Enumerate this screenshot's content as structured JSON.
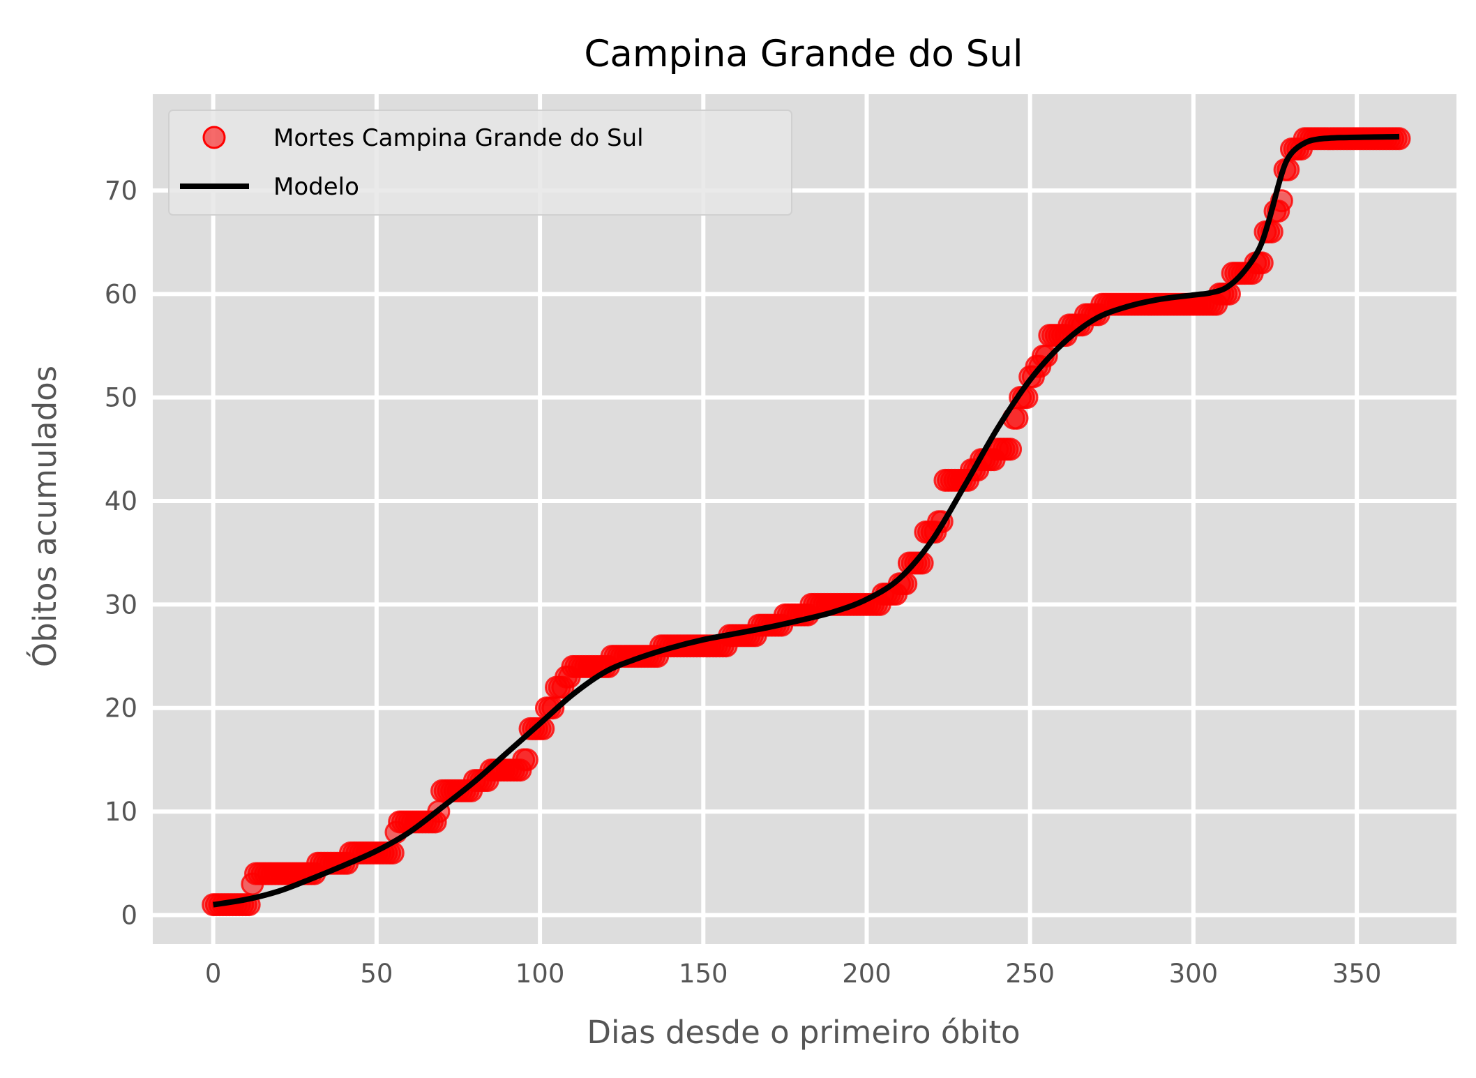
{
  "chart_data": {
    "type": "scatter",
    "title": "Campina Grande do Sul",
    "xlabel": "Dias desde o primeiro óbito",
    "ylabel": "Óbitos acumulados",
    "xlim": [
      -18.5,
      380.5
    ],
    "ylim": [
      -2.8,
      79.3
    ],
    "xticks": [
      0,
      50,
      100,
      150,
      200,
      250,
      300,
      350
    ],
    "yticks": [
      0,
      10,
      20,
      30,
      40,
      50,
      60,
      70
    ],
    "grid": true,
    "legend": {
      "position": "top-left"
    },
    "colors": {
      "plot_background": "#dddddd",
      "grid": "#ffffff",
      "observed": "#ff0000",
      "model": "#000000"
    },
    "series": [
      {
        "name": "Mortes Campina Grande do Sul",
        "kind": "scatter",
        "step_points": [
          [
            0,
            1
          ],
          [
            12,
            3
          ],
          [
            13,
            4
          ],
          [
            32,
            5
          ],
          [
            42,
            6
          ],
          [
            56,
            8
          ],
          [
            57,
            9
          ],
          [
            69,
            10
          ],
          [
            70,
            12
          ],
          [
            80,
            13
          ],
          [
            85,
            14
          ],
          [
            95,
            15
          ],
          [
            97,
            18
          ],
          [
            102,
            20
          ],
          [
            105,
            22
          ],
          [
            108,
            23
          ],
          [
            110,
            24
          ],
          [
            122,
            25
          ],
          [
            137,
            26
          ],
          [
            158,
            27
          ],
          [
            167,
            28
          ],
          [
            175,
            29
          ],
          [
            183,
            30
          ],
          [
            205,
            31
          ],
          [
            210,
            32
          ],
          [
            213,
            34
          ],
          [
            218,
            37
          ],
          [
            222,
            38
          ],
          [
            224,
            42
          ],
          [
            232,
            43
          ],
          [
            235,
            44
          ],
          [
            240,
            45
          ],
          [
            245,
            48
          ],
          [
            247,
            50
          ],
          [
            250,
            52
          ],
          [
            252,
            53
          ],
          [
            254,
            54
          ],
          [
            256,
            56
          ],
          [
            262,
            57
          ],
          [
            267,
            58
          ],
          [
            272,
            59
          ],
          [
            308,
            60
          ],
          [
            312,
            62
          ],
          [
            319,
            63
          ],
          [
            322,
            66
          ],
          [
            325,
            68
          ],
          [
            327,
            69
          ],
          [
            328,
            72
          ],
          [
            330,
            74
          ],
          [
            334,
            75
          ],
          [
            363,
            75
          ]
        ]
      },
      {
        "name": "Modelo",
        "kind": "line",
        "points": [
          [
            0,
            1
          ],
          [
            10,
            1.5
          ],
          [
            20,
            2.3
          ],
          [
            30,
            3.5
          ],
          [
            40,
            4.8
          ],
          [
            50,
            6.2
          ],
          [
            60,
            8
          ],
          [
            70,
            10.4
          ],
          [
            80,
            12.9
          ],
          [
            90,
            15.7
          ],
          [
            100,
            18.5
          ],
          [
            110,
            21.3
          ],
          [
            120,
            23.5
          ],
          [
            130,
            24.8
          ],
          [
            140,
            25.8
          ],
          [
            150,
            26.6
          ],
          [
            160,
            27.2
          ],
          [
            170,
            27.8
          ],
          [
            180,
            28.5
          ],
          [
            190,
            29.3
          ],
          [
            200,
            30.5
          ],
          [
            210,
            32.5
          ],
          [
            220,
            36.2
          ],
          [
            230,
            41.5
          ],
          [
            240,
            47
          ],
          [
            250,
            51.7
          ],
          [
            260,
            55.2
          ],
          [
            270,
            57.6
          ],
          [
            280,
            58.8
          ],
          [
            290,
            59.5
          ],
          [
            300,
            59.9
          ],
          [
            305,
            60.1
          ],
          [
            310,
            60.6
          ],
          [
            315,
            62
          ],
          [
            320,
            64.3
          ],
          [
            323,
            67
          ],
          [
            326,
            70.5
          ],
          [
            328,
            72.5
          ],
          [
            330,
            73.6
          ],
          [
            333,
            74.4
          ],
          [
            337,
            74.9
          ],
          [
            345,
            75.1
          ],
          [
            363,
            75.2
          ]
        ]
      }
    ]
  }
}
